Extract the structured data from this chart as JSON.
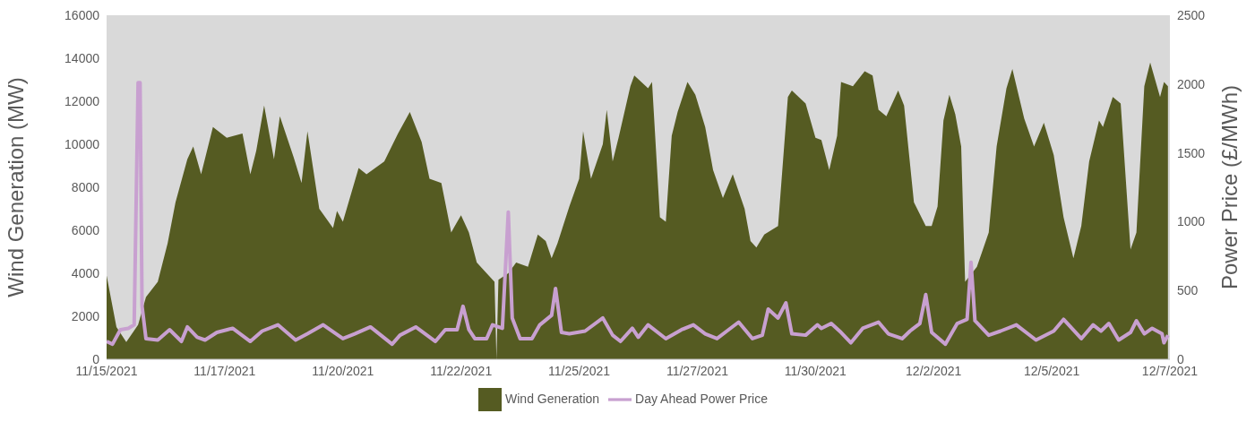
{
  "chart_data": {
    "type": "area",
    "ylabel": "Wind Generation (MW)",
    "y2label": "Power Price (£/MWh)",
    "legend": "bottom",
    "grid": false,
    "xlim": [
      "2021-11-15T00:00",
      "2021-12-07T12:00"
    ],
    "xticks": [
      {
        "value": "2021-11-15T00:00",
        "label": "11/15/2021"
      },
      {
        "value": "2021-11-17T12:00",
        "label": "11/17/2021"
      },
      {
        "value": "2021-11-20T00:00",
        "label": "11/20/2021"
      },
      {
        "value": "2021-11-22T12:00",
        "label": "11/22/2021"
      },
      {
        "value": "2021-11-25T00:00",
        "label": "11/25/2021"
      },
      {
        "value": "2021-11-27T12:00",
        "label": "11/27/2021"
      },
      {
        "value": "2021-11-30T00:00",
        "label": "11/30/2021"
      },
      {
        "value": "2021-12-02T12:00",
        "label": "12/2/2021"
      },
      {
        "value": "2021-12-05T00:00",
        "label": "12/5/2021"
      },
      {
        "value": "2021-12-07T12:00",
        "label": "12/7/2021"
      }
    ],
    "ylim": [
      0,
      16000
    ],
    "yticks": [
      0,
      2000,
      4000,
      6000,
      8000,
      10000,
      12000,
      14000,
      16000
    ],
    "y2lim": [
      0,
      2500
    ],
    "y2ticks": [
      0,
      500,
      1000,
      1500,
      2000,
      2500
    ],
    "series": [
      {
        "name": "Wind Generation",
        "color": "#555b22",
        "x": [
          "2021-11-15T00:00",
          "2021-11-15T05:00",
          "2021-11-15T10:00",
          "2021-11-15T16:00",
          "2021-11-15T20:00",
          "2021-11-16T02:00",
          "2021-11-16T07:00",
          "2021-11-16T11:00",
          "2021-11-16T17:00",
          "2021-11-16T20:00",
          "2021-11-17T00:00",
          "2021-11-17T06:00",
          "2021-11-17T13:00",
          "2021-11-17T21:00",
          "2021-11-18T01:00",
          "2021-11-18T04:00",
          "2021-11-18T08:00",
          "2021-11-18T13:00",
          "2021-11-18T16:00",
          "2021-11-18T23:00",
          "2021-11-19T03:00",
          "2021-11-19T06:00",
          "2021-11-19T12:00",
          "2021-11-19T19:00",
          "2021-11-19T21:00",
          "2021-11-20T00:00",
          "2021-11-20T08:00",
          "2021-11-20T12:00",
          "2021-11-20T21:00",
          "2021-11-21T04:00",
          "2021-11-21T10:00",
          "2021-11-21T16:00",
          "2021-11-21T20:00",
          "2021-11-22T02:00",
          "2021-11-22T07:00",
          "2021-11-22T12:00",
          "2021-11-22T16:00",
          "2021-11-22T20:00",
          "2021-11-23T01:00",
          "2021-11-23T05:00",
          "2021-11-23T06:00",
          "2021-11-23T07:00",
          "2021-11-23T12:00",
          "2021-11-23T16:00",
          "2021-11-23T22:00",
          "2021-11-24T03:00",
          "2021-11-24T07:00",
          "2021-11-24T10:00",
          "2021-11-24T13:00",
          "2021-11-24T19:00",
          "2021-11-25T00:00",
          "2021-11-25T02:00",
          "2021-11-25T06:00",
          "2021-11-25T12:00",
          "2021-11-25T14:00",
          "2021-11-25T17:00",
          "2021-11-25T20:00",
          "2021-11-26T02:00",
          "2021-11-26T04:00",
          "2021-11-26T11:00",
          "2021-11-26T13:00",
          "2021-11-26T17:00",
          "2021-11-26T20:00",
          "2021-11-26T23:00",
          "2021-11-27T02:00",
          "2021-11-27T07:00",
          "2021-11-27T11:00",
          "2021-11-27T16:00",
          "2021-11-27T20:00",
          "2021-11-28T01:00",
          "2021-11-28T06:00",
          "2021-11-28T12:00",
          "2021-11-28T15:00",
          "2021-11-28T18:00",
          "2021-11-28T22:00",
          "2021-11-29T05:00",
          "2021-11-29T10:00",
          "2021-11-29T12:00",
          "2021-11-29T19:00",
          "2021-11-30T00:00",
          "2021-11-30T03:00",
          "2021-11-30T07:00",
          "2021-11-30T11:00",
          "2021-11-30T13:00",
          "2021-11-30T19:00",
          "2021-12-01T01:00",
          "2021-12-01T05:00",
          "2021-12-01T08:00",
          "2021-12-01T12:00",
          "2021-12-01T18:00",
          "2021-12-01T21:00",
          "2021-12-02T02:00",
          "2021-12-02T08:00",
          "2021-12-02T11:00",
          "2021-12-02T14:00",
          "2021-12-02T17:00",
          "2021-12-02T20:00",
          "2021-12-02T23:00",
          "2021-12-03T02:00",
          "2021-12-03T04:00",
          "2021-12-03T10:00",
          "2021-12-03T16:00",
          "2021-12-03T20:00",
          "2021-12-04T01:00",
          "2021-12-04T04:00",
          "2021-12-04T10:00",
          "2021-12-04T15:00",
          "2021-12-04T20:00",
          "2021-12-05T01:00",
          "2021-12-05T06:00",
          "2021-12-05T11:00",
          "2021-12-05T15:00",
          "2021-12-05T19:00",
          "2021-12-06T00:00",
          "2021-12-06T02:00",
          "2021-12-06T07:00",
          "2021-12-06T11:00",
          "2021-12-06T16:00",
          "2021-12-06T19:00",
          "2021-12-06T23:00",
          "2021-12-07T02:00",
          "2021-12-07T07:00",
          "2021-12-07T09:00",
          "2021-12-07T11:00"
        ],
        "values": [
          3900,
          1500,
          800,
          1600,
          2900,
          3600,
          5400,
          7300,
          9300,
          9900,
          8600,
          10800,
          10300,
          10500,
          8600,
          9700,
          11800,
          9300,
          11300,
          9400,
          8200,
          10600,
          7000,
          6100,
          6900,
          6400,
          8900,
          8600,
          9200,
          10500,
          11500,
          10100,
          8400,
          8200,
          5900,
          6700,
          5900,
          4500,
          4000,
          3600,
          0,
          3700,
          4000,
          4500,
          4300,
          5800,
          5500,
          4700,
          5400,
          7100,
          8400,
          10600,
          8400,
          10000,
          11600,
          9200,
          10300,
          12700,
          13200,
          12600,
          12900,
          6600,
          6400,
          10400,
          11500,
          12900,
          12300,
          10800,
          8800,
          7500,
          8600,
          7000,
          5500,
          5200,
          5800,
          6200,
          12200,
          12500,
          11900,
          10300,
          10200,
          8800,
          10400,
          12900,
          12700,
          13400,
          13200,
          11600,
          11300,
          12500,
          11800,
          7300,
          6200,
          6200,
          7100,
          11100,
          12300,
          11400,
          9900,
          3600,
          4300,
          5900,
          9900,
          12600,
          13500,
          11200,
          9900,
          11000,
          9500,
          6600,
          4700,
          6200,
          9200,
          11100,
          10800,
          12200,
          11900,
          5100,
          5900,
          12700,
          13800,
          12200,
          12900,
          12700
        ]
      },
      {
        "name": "Day Ahead Power Price",
        "type": "line",
        "axis": "y2",
        "color": "#c8a0d0",
        "x": [
          "2021-11-15T00:00",
          "2021-11-15T03:00",
          "2021-11-15T07:00",
          "2021-11-15T11:00",
          "2021-11-15T14:00",
          "2021-11-15T16:00",
          "2021-11-15T17:00",
          "2021-11-15T18:00",
          "2021-11-15T20:00",
          "2021-11-16T02:00",
          "2021-11-16T08:00",
          "2021-11-16T14:00",
          "2021-11-16T17:00",
          "2021-11-16T22:00",
          "2021-11-17T02:00",
          "2021-11-17T08:00",
          "2021-11-17T16:00",
          "2021-11-18T01:00",
          "2021-11-18T07:00",
          "2021-11-18T15:00",
          "2021-11-19T00:00",
          "2021-11-19T06:00",
          "2021-11-19T14:00",
          "2021-11-20T00:00",
          "2021-11-20T06:00",
          "2021-11-20T14:00",
          "2021-11-21T01:00",
          "2021-11-21T05:00",
          "2021-11-21T13:00",
          "2021-11-21T23:00",
          "2021-11-22T04:00",
          "2021-11-22T10:00",
          "2021-11-22T13:00",
          "2021-11-22T16:00",
          "2021-11-22T19:00",
          "2021-11-23T01:00",
          "2021-11-23T04:00",
          "2021-11-23T09:00",
          "2021-11-23T12:00",
          "2021-11-23T14:00",
          "2021-11-23T18:00",
          "2021-11-24T00:00",
          "2021-11-24T04:00",
          "2021-11-24T10:00",
          "2021-11-24T12:00",
          "2021-11-24T15:00",
          "2021-11-24T19:00",
          "2021-11-25T03:00",
          "2021-11-25T12:00",
          "2021-11-25T17:00",
          "2021-11-25T21:00",
          "2021-11-26T03:00",
          "2021-11-26T06:00",
          "2021-11-26T11:00",
          "2021-11-26T20:00",
          "2021-11-27T04:00",
          "2021-11-27T10:00",
          "2021-11-27T16:00",
          "2021-11-27T22:00",
          "2021-11-28T03:00",
          "2021-11-28T09:00",
          "2021-11-28T16:00",
          "2021-11-28T21:00",
          "2021-11-29T00:00",
          "2021-11-29T05:00",
          "2021-11-29T09:00",
          "2021-11-29T12:00",
          "2021-11-29T19:00",
          "2021-11-30T01:00",
          "2021-11-30T03:00",
          "2021-11-30T08:00",
          "2021-11-30T13:00",
          "2021-11-30T18:00",
          "2021-12-01T00:00",
          "2021-12-01T08:00",
          "2021-12-01T13:00",
          "2021-12-01T20:00",
          "2021-12-02T00:00",
          "2021-12-02T05:00",
          "2021-12-02T08:00",
          "2021-12-02T11:00",
          "2021-12-02T18:00",
          "2021-12-03T00:00",
          "2021-12-03T05:00",
          "2021-12-03T07:00",
          "2021-12-03T09:00",
          "2021-12-03T16:00",
          "2021-12-03T22:00",
          "2021-12-04T06:00",
          "2021-12-04T16:00",
          "2021-12-05T01:00",
          "2021-12-05T06:00",
          "2021-12-05T15:00",
          "2021-12-05T21:00",
          "2021-12-06T01:00",
          "2021-12-06T05:00",
          "2021-12-06T10:00",
          "2021-12-06T16:00",
          "2021-12-06T19:00",
          "2021-12-06T23:00",
          "2021-12-07T03:00",
          "2021-12-07T08:00",
          "2021-12-07T09:00",
          "2021-12-07T11:00"
        ],
        "values": [
          130,
          110,
          215,
          225,
          250,
          2010,
          2010,
          385,
          150,
          140,
          215,
          130,
          235,
          160,
          140,
          195,
          225,
          130,
          205,
          250,
          140,
          185,
          250,
          150,
          185,
          235,
          110,
          175,
          235,
          130,
          215,
          215,
          385,
          215,
          150,
          150,
          250,
          225,
          1070,
          300,
          150,
          150,
          250,
          320,
          515,
          195,
          185,
          205,
          300,
          175,
          130,
          225,
          160,
          250,
          150,
          215,
          250,
          185,
          150,
          205,
          270,
          150,
          175,
          365,
          300,
          410,
          185,
          175,
          250,
          225,
          260,
          195,
          120,
          225,
          270,
          185,
          150,
          205,
          260,
          470,
          195,
          110,
          260,
          290,
          705,
          280,
          175,
          205,
          250,
          140,
          205,
          290,
          150,
          250,
          205,
          260,
          140,
          195,
          280,
          185,
          225,
          185,
          120,
          175
        ]
      }
    ]
  }
}
